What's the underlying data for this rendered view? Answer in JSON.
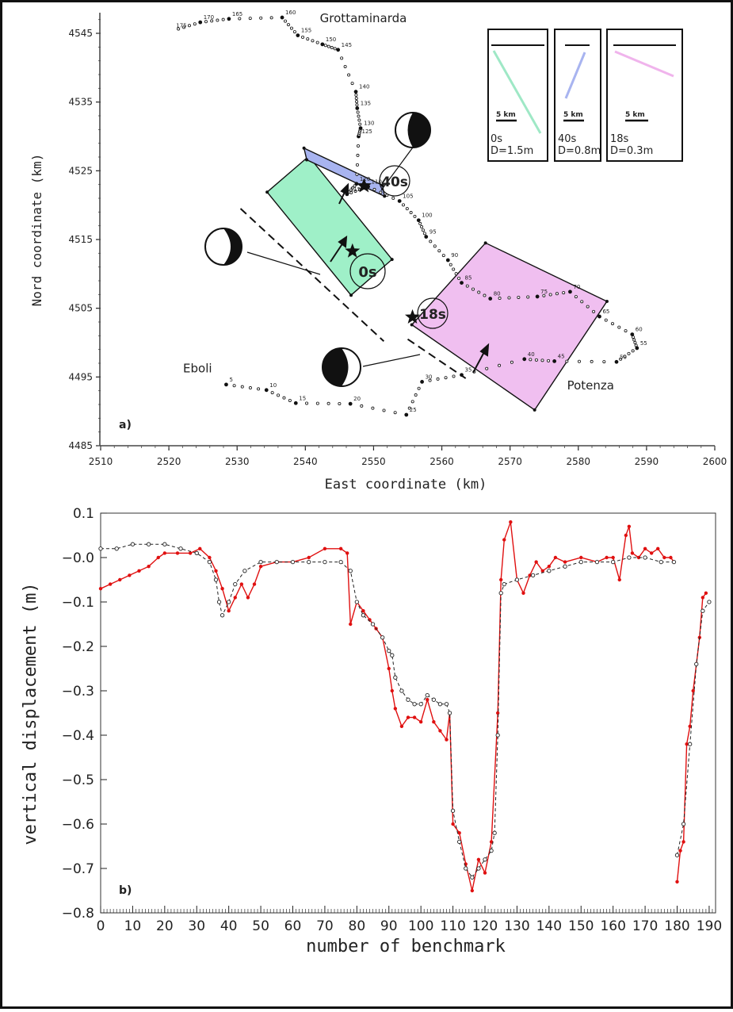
{
  "chart_data": [
    {
      "type": "scatter",
      "panel_label": "a)",
      "xlabel": "East coordinate (km)",
      "ylabel": "Nord coordinate (km)",
      "xlim": [
        2510,
        2600
      ],
      "ylim": [
        4485,
        4548
      ],
      "xticks": [
        2510,
        2520,
        2530,
        2540,
        2550,
        2560,
        2570,
        2580,
        2590,
        2600
      ],
      "yticks": [
        4485,
        4495,
        4505,
        4515,
        4525,
        4535,
        4545
      ],
      "places": [
        {
          "name": "Grottaminarda",
          "x": 2548.5,
          "y": 4546.6
        },
        {
          "name": "Eboli",
          "x": 2524.2,
          "y": 4495.7
        },
        {
          "name": "Potenza",
          "x": 2581.8,
          "y": 4493.2
        }
      ],
      "faults": [
        {
          "label": "0s",
          "color": "#9ff0c8",
          "corners": [
            [
              2534.4,
              4521.9
            ],
            [
              2540.5,
              4527.1
            ],
            [
              2552.7,
              4512.1
            ],
            [
              2546.7,
              4506.9
            ]
          ],
          "star": [
            2546.9,
            4513.3
          ]
        },
        {
          "label": "40s",
          "color": "#a8b4f0",
          "corners": [
            [
              2539.8,
              4528.3
            ],
            [
              2540.2,
              4526.6
            ],
            [
              2551.6,
              4521.3
            ],
            [
              2551.3,
              4522.9
            ]
          ],
          "star": [
            2548.6,
            4522.8
          ]
        },
        {
          "label": "18s",
          "color": "#f0bff0",
          "corners": [
            [
              2555.6,
              4502.6
            ],
            [
              2566.4,
              4514.5
            ],
            [
              2584.2,
              4506.0
            ],
            [
              2573.6,
              4490.2
            ]
          ],
          "star": [
            2555.7,
            4503.7
          ]
        }
      ],
      "legend": [
        {
          "time": "0s",
          "slip": "D=1.5m",
          "scale": "5 km"
        },
        {
          "time": "40s",
          "slip": "D=0.8m",
          "scale": "5 km"
        },
        {
          "time": "18s",
          "slip": "D=0.3m",
          "scale": "5 km"
        }
      ],
      "benchmarks": [
        {
          "n": 5,
          "x": 2528.4,
          "y": 4493.9
        },
        {
          "n": 10,
          "x": 2534.3,
          "y": 4493.1
        },
        {
          "n": 15,
          "x": 2538.6,
          "y": 4491.2
        },
        {
          "n": 20,
          "x": 2546.6,
          "y": 4491.1
        },
        {
          "n": 25,
          "x": 2554.8,
          "y": 4489.5
        },
        {
          "n": 30,
          "x": 2557.1,
          "y": 4494.3
        },
        {
          "n": 35,
          "x": 2562.9,
          "y": 4495.3
        },
        {
          "n": 40,
          "x": 2572.1,
          "y": 4497.6
        },
        {
          "n": 45,
          "x": 2576.5,
          "y": 4497.3
        },
        {
          "n": 50,
          "x": 2585.6,
          "y": 4497.2
        },
        {
          "n": 55,
          "x": 2588.6,
          "y": 4499.2
        },
        {
          "n": 60,
          "x": 2587.9,
          "y": 4501.2
        },
        {
          "n": 65,
          "x": 2583.1,
          "y": 4503.8
        },
        {
          "n": 70,
          "x": 2578.8,
          "y": 4507.4
        },
        {
          "n": 75,
          "x": 2574.0,
          "y": 4506.7
        },
        {
          "n": 80,
          "x": 2567.1,
          "y": 4506.4
        },
        {
          "n": 85,
          "x": 2562.9,
          "y": 4508.7
        },
        {
          "n": 90,
          "x": 2560.9,
          "y": 4512.0
        },
        {
          "n": 95,
          "x": 2557.7,
          "y": 4515.4
        },
        {
          "n": 100,
          "x": 2556.6,
          "y": 4517.8
        },
        {
          "n": 105,
          "x": 2553.8,
          "y": 4520.6
        },
        {
          "n": 110,
          "x": 2549.2,
          "y": 4522.7
        },
        {
          "n": 115,
          "x": 2546.1,
          "y": 4521.6
        },
        {
          "n": 120,
          "x": 2547.5,
          "y": 4523.1
        },
        {
          "n": 125,
          "x": 2547.8,
          "y": 4530.0
        },
        {
          "n": 130,
          "x": 2548.1,
          "y": 4531.2
        },
        {
          "n": 135,
          "x": 2547.6,
          "y": 4534.1
        },
        {
          "n": 140,
          "x": 2547.4,
          "y": 4536.5
        },
        {
          "n": 145,
          "x": 2544.8,
          "y": 4542.6
        },
        {
          "n": 150,
          "x": 2542.5,
          "y": 4543.4
        },
        {
          "n": 155,
          "x": 2538.9,
          "y": 4544.7
        },
        {
          "n": 160,
          "x": 2536.6,
          "y": 4547.3
        },
        {
          "n": 165,
          "x": 2528.8,
          "y": 4547.1
        },
        {
          "n": 170,
          "x": 2524.6,
          "y": 4546.6
        },
        {
          "n": 175,
          "x": 2520.6,
          "y": 4545.4
        }
      ]
    },
    {
      "type": "line",
      "panel_label": "b)",
      "xlabel": "number of benchmark",
      "ylabel": "vertical displacement (m)",
      "xlim": [
        0,
        192
      ],
      "ylim": [
        -0.8,
        0.1
      ],
      "xticks": [
        0,
        10,
        20,
        30,
        40,
        50,
        60,
        70,
        80,
        90,
        100,
        110,
        120,
        130,
        140,
        150,
        160,
        170,
        180,
        190
      ],
      "yticks": [
        -0.8,
        -0.7,
        -0.6,
        -0.5,
        -0.4,
        -0.3,
        -0.2,
        -0.1,
        0.0,
        0.1
      ],
      "ytick_labels": [
        "−0.8",
        "−0.7",
        "−0.6",
        "−0.5",
        "−0.4",
        "−0.3",
        "−0.2",
        "−0.1",
        "−0.0",
        "0.1"
      ],
      "series": [
        {
          "style": "observed",
          "color": "#e01010",
          "segments": [
            {
              "x": [
                0,
                3,
                6,
                9,
                12,
                15,
                18,
                20,
                24,
                28,
                31,
                34,
                36,
                38,
                40,
                42,
                44,
                46,
                48,
                50,
                55,
                60,
                65,
                70,
                75,
                77,
                78,
                80,
                82,
                84,
                86,
                88,
                90,
                91,
                92,
                94,
                96,
                98,
                100,
                102,
                104,
                106,
                108,
                109,
                110,
                112,
                114,
                116,
                118,
                120,
                122,
                124,
                125,
                126,
                128,
                130,
                132,
                134,
                136,
                138,
                140,
                142,
                145,
                150,
                155,
                158,
                160,
                162,
                164,
                165,
                166,
                168,
                170,
                172,
                174,
                176,
                178,
                179
              ],
              "y": [
                -0.07,
                -0.06,
                -0.05,
                -0.04,
                -0.03,
                -0.02,
                0.0,
                0.01,
                0.01,
                0.01,
                0.02,
                0.0,
                -0.03,
                -0.07,
                -0.12,
                -0.09,
                -0.06,
                -0.09,
                -0.06,
                -0.02,
                -0.01,
                -0.01,
                0.0,
                0.02,
                0.02,
                0.01,
                -0.15,
                -0.1,
                -0.12,
                -0.14,
                -0.16,
                -0.18,
                -0.25,
                -0.3,
                -0.34,
                -0.38,
                -0.36,
                -0.36,
                -0.37,
                -0.32,
                -0.37,
                -0.39,
                -0.41,
                -0.35,
                -0.6,
                -0.62,
                -0.69,
                -0.75,
                -0.68,
                -0.71,
                -0.64,
                -0.35,
                -0.05,
                0.04,
                0.08,
                -0.05,
                -0.08,
                -0.04,
                -0.01,
                -0.03,
                -0.02,
                0.0,
                -0.01,
                0.0,
                -0.01,
                0.0,
                0.0,
                -0.05,
                0.05,
                0.07,
                0.01,
                0.0,
                0.02,
                0.01,
                0.02,
                0.0,
                0.0,
                -0.01
              ]
            },
            {
              "x": [
                180,
                181,
                182,
                183,
                184,
                185,
                186,
                187,
                188,
                189
              ],
              "y": [
                -0.73,
                -0.66,
                -0.64,
                -0.42,
                -0.38,
                -0.3,
                -0.24,
                -0.18,
                -0.09,
                -0.08
              ]
            }
          ]
        },
        {
          "style": "model",
          "color": "#222222",
          "segments": [
            {
              "x": [
                0,
                5,
                10,
                15,
                20,
                25,
                30,
                34,
                36,
                37,
                38,
                40,
                42,
                45,
                50,
                55,
                60,
                65,
                70,
                75,
                78,
                80,
                82,
                85,
                88,
                90,
                91,
                92,
                94,
                96,
                98,
                100,
                102,
                104,
                106,
                108,
                109,
                110,
                112,
                114,
                116,
                118,
                120,
                122,
                123,
                124,
                125,
                126,
                130,
                135,
                140,
                145,
                150,
                155,
                160,
                165,
                170,
                175,
                179
              ],
              "y": [
                0.02,
                0.02,
                0.03,
                0.03,
                0.03,
                0.02,
                0.01,
                -0.01,
                -0.05,
                -0.1,
                -0.13,
                -0.1,
                -0.06,
                -0.03,
                -0.01,
                -0.01,
                -0.01,
                -0.01,
                -0.01,
                -0.01,
                -0.03,
                -0.1,
                -0.13,
                -0.15,
                -0.18,
                -0.21,
                -0.22,
                -0.27,
                -0.3,
                -0.32,
                -0.33,
                -0.33,
                -0.31,
                -0.32,
                -0.33,
                -0.33,
                -0.35,
                -0.57,
                -0.64,
                -0.7,
                -0.72,
                -0.7,
                -0.68,
                -0.66,
                -0.62,
                -0.4,
                -0.08,
                -0.06,
                -0.05,
                -0.04,
                -0.03,
                -0.02,
                -0.01,
                -0.01,
                -0.01,
                0.0,
                0.0,
                -0.01,
                -0.01
              ]
            },
            {
              "x": [
                180,
                182,
                184,
                186,
                188,
                190
              ],
              "y": [
                -0.67,
                -0.6,
                -0.42,
                -0.24,
                -0.12,
                -0.1
              ]
            }
          ]
        }
      ]
    }
  ]
}
